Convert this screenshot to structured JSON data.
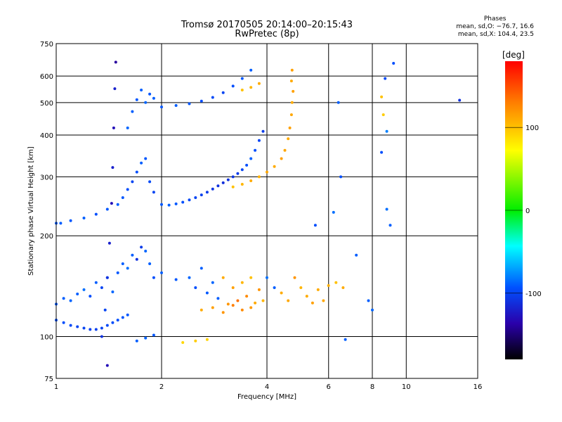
{
  "header": {
    "title": "Tromsø 20170505 20:14:00–20:15:43",
    "subtitle": "RwPretec (8p)",
    "phase_title": "Phases",
    "phase_line1": "mean, sd,O: −76.7, 16.6",
    "phase_line2": "mean, sd,X: 104.4, 23.5"
  },
  "chart_data": {
    "type": "scatter",
    "title": "Tromsø 20170505 20:14:00–20:15:43",
    "subtitle": "RwPretec (8p)",
    "xlabel": "Frequency [MHz]",
    "ylabel": "Stationary phase Virtual Height [km]",
    "x_scale": "log",
    "y_scale": "log",
    "xlim": [
      1,
      16
    ],
    "ylim": [
      75,
      750
    ],
    "x_ticks": [
      1,
      2,
      4,
      6,
      8,
      10,
      16
    ],
    "y_ticks": [
      75,
      100,
      200,
      300,
      400,
      500,
      600,
      750
    ],
    "grid": true,
    "colorbar": {
      "label": "[deg]",
      "range": [
        -180,
        180
      ],
      "ticks": [
        100,
        0,
        -100
      ]
    },
    "series": [
      {
        "values": [
          [
            1.0,
            112,
            -95
          ],
          [
            1.05,
            110,
            -95
          ],
          [
            1.1,
            108,
            -98
          ],
          [
            1.15,
            107,
            -100
          ],
          [
            1.2,
            106,
            -100
          ],
          [
            1.25,
            105,
            -102
          ],
          [
            1.3,
            105,
            -102
          ],
          [
            1.35,
            106,
            -100
          ],
          [
            1.4,
            108,
            -98
          ],
          [
            1.45,
            110,
            -96
          ],
          [
            1.5,
            112,
            -95
          ],
          [
            1.55,
            114,
            -93
          ],
          [
            1.6,
            116,
            -92
          ]
        ]
      },
      {
        "values": [
          [
            1.0,
            125,
            -92
          ],
          [
            1.05,
            130,
            -90
          ],
          [
            1.1,
            128,
            -88
          ],
          [
            1.15,
            134,
            -90
          ],
          [
            1.2,
            138,
            -85
          ],
          [
            1.25,
            132,
            -95
          ],
          [
            1.3,
            145,
            -90
          ],
          [
            1.35,
            140,
            -100
          ],
          [
            1.4,
            150,
            -95
          ],
          [
            1.45,
            136,
            -88
          ],
          [
            1.5,
            155,
            -92
          ],
          [
            1.55,
            165,
            -90
          ],
          [
            1.6,
            160,
            -85
          ],
          [
            1.65,
            175,
            -90
          ],
          [
            1.7,
            170,
            -110
          ],
          [
            1.75,
            185,
            -105
          ],
          [
            1.8,
            180,
            -88
          ],
          [
            1.85,
            165,
            -90
          ],
          [
            1.9,
            150,
            -95
          ]
        ]
      },
      {
        "values": [
          [
            1.0,
            218,
            -92
          ],
          [
            1.03,
            218,
            -90
          ],
          [
            1.1,
            222,
            -92
          ],
          [
            1.2,
            226,
            -90
          ],
          [
            1.3,
            232,
            -95
          ],
          [
            1.4,
            240,
            -92
          ],
          [
            1.5,
            248,
            -90
          ],
          [
            1.55,
            260,
            -92
          ],
          [
            1.6,
            275,
            -95
          ],
          [
            1.65,
            290,
            -100
          ],
          [
            1.7,
            310,
            -95
          ],
          [
            1.75,
            330,
            -90
          ],
          [
            1.8,
            340,
            -92
          ],
          [
            1.85,
            290,
            -98
          ],
          [
            1.9,
            270,
            -100
          ]
        ]
      },
      {
        "values": [
          [
            1.6,
            420,
            -88
          ],
          [
            1.65,
            470,
            -90
          ],
          [
            1.7,
            510,
            -92
          ],
          [
            1.75,
            545,
            -90
          ],
          [
            1.8,
            500,
            -88
          ],
          [
            1.85,
            530,
            -92
          ],
          [
            1.9,
            515,
            -90
          ]
        ]
      },
      {
        "values": [
          [
            1.35,
            100,
            -110
          ],
          [
            1.38,
            120,
            -100
          ],
          [
            1.4,
            150,
            -110
          ],
          [
            1.42,
            190,
            -120
          ],
          [
            1.44,
            250,
            -130
          ],
          [
            1.45,
            320,
            -120
          ],
          [
            1.46,
            420,
            -130
          ],
          [
            1.47,
            550,
            -120
          ],
          [
            1.48,
            660,
            -140
          ],
          [
            1.4,
            82,
            -130
          ]
        ]
      },
      {
        "values": [
          [
            1.7,
            97,
            -90
          ],
          [
            1.8,
            99,
            -88
          ],
          [
            1.9,
            101,
            -92
          ]
        ]
      },
      {
        "values": [
          [
            2.0,
            248,
            -92
          ],
          [
            2.1,
            247,
            -90
          ],
          [
            2.2,
            249,
            -92
          ],
          [
            2.3,
            252,
            -95
          ],
          [
            2.4,
            256,
            -98
          ],
          [
            2.5,
            260,
            -100
          ],
          [
            2.6,
            265,
            -102
          ],
          [
            2.7,
            270,
            -105
          ],
          [
            2.8,
            276,
            -108
          ],
          [
            2.9,
            282,
            -110
          ],
          [
            3.0,
            288,
            -112
          ],
          [
            3.1,
            294,
            -110
          ],
          [
            3.2,
            300,
            -108
          ],
          [
            3.3,
            307,
            -105
          ],
          [
            3.4,
            315,
            -100
          ],
          [
            3.5,
            325,
            -95
          ],
          [
            3.6,
            340,
            -90
          ],
          [
            3.7,
            360,
            -95
          ],
          [
            3.8,
            385,
            -100
          ],
          [
            3.9,
            410,
            -105
          ]
        ]
      },
      {
        "values": [
          [
            3.2,
            280,
            100
          ],
          [
            3.4,
            285,
            105
          ],
          [
            3.6,
            292,
            110
          ],
          [
            3.8,
            300,
            108
          ],
          [
            4.0,
            310,
            112
          ],
          [
            4.2,
            322,
            110
          ],
          [
            4.4,
            340,
            115
          ],
          [
            4.5,
            360,
            112
          ],
          [
            4.6,
            390,
            110
          ],
          [
            4.65,
            420,
            115
          ],
          [
            4.7,
            460,
            112
          ],
          [
            4.72,
            500,
            110
          ],
          [
            4.75,
            540,
            115
          ],
          [
            4.7,
            580,
            110
          ],
          [
            4.72,
            625,
            115
          ]
        ]
      },
      {
        "values": [
          [
            2.0,
            485,
            -92
          ],
          [
            2.2,
            490,
            -90
          ],
          [
            2.4,
            496,
            -92
          ],
          [
            2.6,
            505,
            -95
          ],
          [
            2.8,
            518,
            -98
          ],
          [
            3.0,
            535,
            -100
          ],
          [
            3.2,
            560,
            -95
          ],
          [
            3.4,
            590,
            -92
          ],
          [
            3.6,
            625,
            -90
          ]
        ]
      },
      {
        "values": [
          [
            3.4,
            545,
            100
          ],
          [
            3.6,
            555,
            105
          ],
          [
            3.8,
            570,
            110
          ]
        ]
      },
      {
        "values": [
          [
            2.0,
            155,
            -90
          ],
          [
            2.2,
            148,
            -92
          ],
          [
            2.4,
            150,
            -88
          ],
          [
            2.5,
            140,
            -95
          ],
          [
            2.6,
            160,
            -90
          ],
          [
            2.7,
            135,
            -92
          ],
          [
            2.8,
            145,
            -88
          ],
          [
            2.9,
            130,
            -90
          ],
          [
            3.0,
            150,
            110
          ],
          [
            3.1,
            125,
            120
          ],
          [
            3.2,
            140,
            115
          ],
          [
            3.3,
            128,
            135
          ],
          [
            3.4,
            145,
            105
          ],
          [
            3.5,
            132,
            125
          ],
          [
            3.6,
            150,
            100
          ],
          [
            3.7,
            126,
            110
          ],
          [
            3.8,
            138,
            120
          ],
          [
            3.9,
            128,
            105
          ],
          [
            4.0,
            150,
            -85
          ],
          [
            4.2,
            140,
            -90
          ],
          [
            4.4,
            135,
            110
          ],
          [
            4.6,
            128,
            112
          ],
          [
            4.8,
            150,
            120
          ],
          [
            5.0,
            140,
            105
          ],
          [
            5.2,
            132,
            110
          ],
          [
            5.4,
            126,
            115
          ],
          [
            5.6,
            138,
            110
          ],
          [
            5.8,
            128,
            112
          ],
          [
            6.0,
            142,
            108
          ]
        ]
      },
      {
        "values": [
          [
            2.6,
            120,
            110
          ],
          [
            2.8,
            122,
            115
          ],
          [
            3.0,
            118,
            120
          ],
          [
            3.2,
            124,
            130
          ],
          [
            3.4,
            120,
            125
          ],
          [
            3.6,
            122,
            118
          ]
        ]
      },
      {
        "values": [
          [
            2.3,
            96,
            90
          ],
          [
            2.5,
            97,
            95
          ],
          [
            2.7,
            98,
            92
          ]
        ]
      },
      {
        "values": [
          [
            6.3,
            145,
            100
          ],
          [
            6.6,
            140,
            110
          ],
          [
            7.8,
            128,
            -90
          ],
          [
            6.5,
            300,
            -95
          ],
          [
            6.4,
            500,
            -90
          ],
          [
            8.5,
            520,
            100
          ],
          [
            8.6,
            460,
            95
          ],
          [
            8.8,
            410,
            -80
          ],
          [
            8.8,
            240,
            -85
          ],
          [
            9.0,
            215,
            -90
          ],
          [
            9.2,
            655,
            -95
          ],
          [
            8.5,
            355,
            -95
          ],
          [
            8.7,
            590,
            -98
          ],
          [
            14.2,
            508,
            -110
          ],
          [
            6.7,
            98,
            -90
          ],
          [
            5.5,
            215,
            -95
          ],
          [
            6.2,
            235,
            -85
          ],
          [
            8.0,
            120,
            -88
          ],
          [
            7.2,
            175,
            -90
          ]
        ]
      }
    ]
  }
}
